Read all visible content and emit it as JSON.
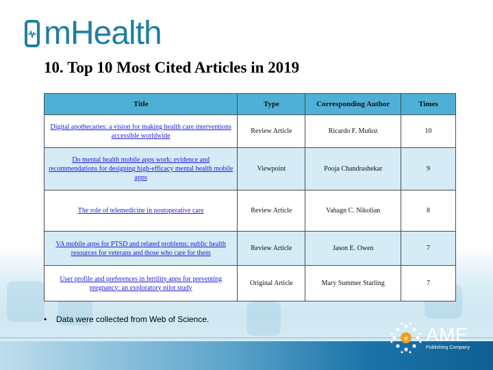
{
  "logo": {
    "text": "mHealth"
  },
  "page": {
    "title": "10. Top 10 Most Cited Articles in 2019"
  },
  "table": {
    "headers": [
      "Title",
      "Type",
      "Corresponding Author",
      "Times"
    ],
    "rows": [
      {
        "title": "Digital apothecaries: a vision for making health care interventions accessible worldwide",
        "type": "Review Article",
        "author": "Ricardo F. Muñoz",
        "times": "10"
      },
      {
        "title": "Do mental health mobile apps work: evidence and recommendations for designing high-efficacy mental health mobile apps",
        "type": "Viewpoint",
        "author": "Pooja Chandrashekar",
        "times": "9"
      },
      {
        "title": "The role of telemedicine in postoperative care",
        "type": "Review Article",
        "author": "Vahagn C. Nikolian",
        "times": "8"
      },
      {
        "title": "VA mobile apps for PTSD and related problems: public health resources for veterans and those who care for them",
        "type": "Review Article",
        "author": "Jason E. Owen",
        "times": "7"
      },
      {
        "title": "User profile and preferences in fertility apps for preventing pregnancy: an exploratory pilot study",
        "type": "Original Article",
        "author": "Mary Summer Starling",
        "times": "7"
      }
    ]
  },
  "note": {
    "bullet": "•",
    "text": "Data were collected from Web of Science."
  },
  "publisher": {
    "name": "AME",
    "subtitle": "Publishing Company"
  },
  "colors": {
    "brand": "#1f7ea1",
    "header_bg": "#4eb0d6",
    "row_alt": "#d5ebf5",
    "link": "#1a1ad6"
  },
  "icons": {
    "logo_mark": "phone-heartbeat-icon",
    "publisher_mark": "ame-dots-logo-icon"
  }
}
